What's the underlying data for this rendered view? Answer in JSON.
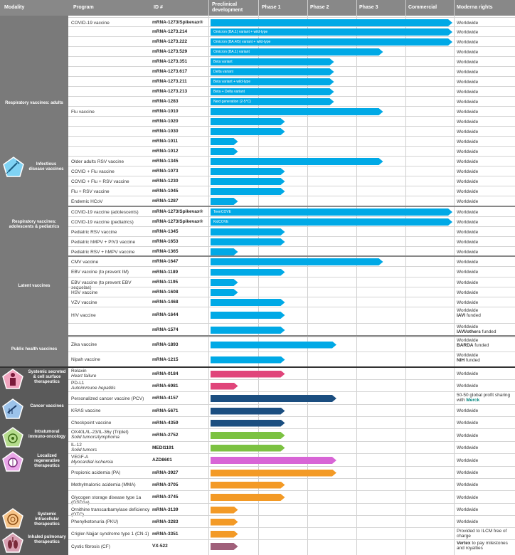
{
  "header": {
    "modality": "Modality",
    "program": "Program",
    "id": "ID #",
    "preclinical": "Preclinical development",
    "phase1": "Phase 1",
    "phase2": "Phase 2",
    "phase3": "Phase 3",
    "commercial": "Commercial",
    "rights": "Moderna rights"
  },
  "colors": {
    "header": "#888888",
    "sidebar_infectious": "#7a7a7a",
    "sidebar_systemic": "#5a5a5a",
    "vaccine": "#00a9e6"
  },
  "modalities": {
    "infectious": "Infectious disease vaccines",
    "systemic_secreted": "Systemic secreted & cell surface therapeutics",
    "cancer": "Cancer vaccines",
    "intratumoral": "Intratumoral immuno-oncology",
    "regenerative": "Localized regenerative therapeutics",
    "intracellular": "Systemic intracellular therapeutics",
    "inhaled": "Inhaled pulmonary therapeutics"
  },
  "groups": {
    "resp_adults": "Respiratory vaccines: adults",
    "resp_peds": "Respiratory vaccines: adolescents & pediatrics",
    "latent": "Latent vaccines",
    "public_health": "Public health vaccines"
  },
  "rows": [
    {
      "program": "COVID-19 vaccine",
      "id": "mRNA-1273/Spikevax®",
      "stage": 5.0,
      "bar_label": "",
      "rights": "Worldwide",
      "color": "#00a9e6"
    },
    {
      "program": "",
      "id": "mRNA-1273.214",
      "stage": 5.0,
      "bar_label": "Omicron (BA.1) variant + wild-type",
      "rights": "Worldwide",
      "color": "#00a9e6"
    },
    {
      "program": "",
      "id": "mRNA-1273.222",
      "stage": 5.0,
      "bar_label": "Omicron (BA.4/5) variant + wild-type",
      "rights": "Worldwide",
      "color": "#00a9e6"
    },
    {
      "program": "",
      "id": "mRNA-1273.529",
      "stage": 3.5,
      "bar_label": "Omicron (BA.1) variant",
      "rights": "Worldwide",
      "color": "#00a9e6"
    },
    {
      "program": "",
      "id": "mRNA-1273.351",
      "stage": 2.5,
      "bar_label": "Beta variant",
      "rights": "Worldwide",
      "color": "#00a9e6"
    },
    {
      "program": "",
      "id": "mRNA-1273.617",
      "stage": 2.5,
      "bar_label": "Delta variant",
      "rights": "Worldwide",
      "color": "#00a9e6"
    },
    {
      "program": "",
      "id": "mRNA-1273.211",
      "stage": 2.5,
      "bar_label": "Beta variant + wild-type",
      "rights": "Worldwide",
      "color": "#00a9e6"
    },
    {
      "program": "",
      "id": "mRNA-1273.213",
      "stage": 2.5,
      "bar_label": "Beta + Delta variant",
      "rights": "Worldwide",
      "color": "#00a9e6"
    },
    {
      "program": "",
      "id": "mRNA-1283",
      "stage": 2.5,
      "bar_label": "Next generation (2-5°C)",
      "rights": "Worldwide",
      "color": "#00a9e6"
    },
    {
      "program": "Flu vaccine",
      "id": "mRNA-1010",
      "stage": 3.5,
      "bar_label": "",
      "rights": "Worldwide",
      "color": "#00a9e6"
    },
    {
      "program": "",
      "id": "mRNA-1020",
      "stage": 1.5,
      "bar_label": "",
      "rights": "Worldwide",
      "color": "#00a9e6"
    },
    {
      "program": "",
      "id": "mRNA-1030",
      "stage": 1.5,
      "bar_label": "",
      "rights": "Worldwide",
      "color": "#00a9e6"
    },
    {
      "program": "",
      "id": "mRNA-1011",
      "stage": 0.55,
      "bar_label": "",
      "rights": "Worldwide",
      "color": "#00a9e6"
    },
    {
      "program": "",
      "id": "mRNA-1012",
      "stage": 0.55,
      "bar_label": "",
      "rights": "Worldwide",
      "color": "#00a9e6"
    },
    {
      "program": "Older adults RSV vaccine",
      "id": "mRNA-1345",
      "stage": 3.5,
      "bar_label": "",
      "rights": "Worldwide",
      "color": "#00a9e6"
    },
    {
      "program": "COVID + Flu vaccine",
      "id": "mRNA-1073",
      "stage": 1.5,
      "bar_label": "",
      "rights": "Worldwide",
      "color": "#00a9e6"
    },
    {
      "program": "COVID + Flu + RSV vaccine",
      "id": "mRNA-1230",
      "stage": 1.5,
      "bar_label": "",
      "rights": "Worldwide",
      "color": "#00a9e6"
    },
    {
      "program": "Flu + RSV vaccine",
      "id": "mRNA-1045",
      "stage": 1.5,
      "bar_label": "",
      "rights": "Worldwide",
      "color": "#00a9e6"
    },
    {
      "program": "Endemic HCoV",
      "id": "mRNA-1287",
      "stage": 0.55,
      "bar_label": "",
      "rights": "Worldwide",
      "color": "#00a9e6"
    },
    {
      "program": "COVID-19 vaccine (adolescents)",
      "id": "mRNA-1273/Spikevax®",
      "stage": 5.0,
      "bar_label": "TeenCOVE",
      "rights": "Worldwide",
      "color": "#00a9e6"
    },
    {
      "program": "COVID-19 vaccine (pediatrics)",
      "id": "mRNA-1273/Spikevax®",
      "stage": 5.0,
      "bar_label": "KidCOVE",
      "rights": "Worldwide",
      "color": "#00a9e6"
    },
    {
      "program": "Pediatric RSV vaccine",
      "id": "mRNA-1345",
      "stage": 1.5,
      "bar_label": "",
      "rights": "Worldwide",
      "color": "#00a9e6"
    },
    {
      "program": "Pediatric hMPV + PIV3 vaccine",
      "id": "mRNA-1653",
      "stage": 1.5,
      "bar_label": "",
      "rights": "Worldwide",
      "color": "#00a9e6"
    },
    {
      "program": "Pediatric RSV + hMPV vaccine",
      "id": "mRNA-1365",
      "stage": 0.55,
      "bar_label": "",
      "rights": "Worldwide",
      "color": "#00a9e6"
    },
    {
      "program": "CMV vaccine",
      "id": "mRNA-1647",
      "stage": 3.5,
      "bar_label": "",
      "rights": "Worldwide",
      "color": "#00a9e6"
    },
    {
      "program": "EBV vaccine (to prevent IM)",
      "id": "mRNA-1189",
      "stage": 1.5,
      "bar_label": "",
      "rights": "Worldwide",
      "color": "#00a9e6"
    },
    {
      "program": "EBV vaccine (to prevent EBV sequelae)",
      "id": "mRNA-1195",
      "stage": 0.55,
      "bar_label": "",
      "rights": "Worldwide",
      "color": "#00a9e6"
    },
    {
      "program": "HSV vaccine",
      "id": "mRNA-1608",
      "stage": 0.55,
      "bar_label": "",
      "rights": "Worldwide",
      "color": "#00a9e6"
    },
    {
      "program": "VZV vaccine",
      "id": "mRNA-1468",
      "stage": 1.5,
      "bar_label": "",
      "rights": "Worldwide",
      "color": "#00a9e6"
    },
    {
      "program": "HIV vaccine",
      "id": "mRNA-1644",
      "stage": 1.5,
      "bar_label": "",
      "rights": "Worldwide",
      "rights_bold": "IAVI",
      "rights_tail": "funded",
      "color": "#00a9e6"
    },
    {
      "program": "",
      "id": "mRNA-1574",
      "stage": 1.5,
      "bar_label": "",
      "rights": "Worldwide",
      "rights_bold": "IAVI/others",
      "rights_tail": "funded",
      "color": "#00a9e6"
    },
    {
      "program": "Zika vaccine",
      "id": "mRNA-1893",
      "stage": 2.55,
      "bar_label": "",
      "rights": "Worldwide",
      "rights_bold": "BARDA",
      "rights_tail": "funded",
      "color": "#00a9e6"
    },
    {
      "program": "Nipah vaccine",
      "id": "mRNA-1215",
      "stage": 1.5,
      "bar_label": "",
      "rights": "Worldwide",
      "rights_bold": "NIH",
      "rights_tail": "funded",
      "color": "#00a9e6"
    },
    {
      "program": "Relaxin",
      "program2": "Heart failure",
      "id": "mRNA-0184",
      "stage": 1.5,
      "bar_label": "",
      "rights": "Worldwide",
      "color": "#e0457a"
    },
    {
      "program": "PD-L1",
      "program2": "Autoimmune hepatitis",
      "id": "mRNA-6981",
      "stage": 0.55,
      "bar_label": "",
      "rights": "Worldwide",
      "color": "#e0457a"
    },
    {
      "program": "Personalized cancer vaccine (PCV)",
      "id": "mRNA-4157",
      "stage": 2.55,
      "bar_label": "",
      "rights": "50-50 global profit sharing with",
      "rights_bold2": "Merck",
      "color": "#1b4e80"
    },
    {
      "program": "KRAS vaccine",
      "id": "mRNA-5671",
      "stage": 1.5,
      "bar_label": "",
      "rights": "Worldwide",
      "color": "#1b4e80"
    },
    {
      "program": "Checkpoint vaccine",
      "id": "mRNA-4359",
      "stage": 1.5,
      "bar_label": "",
      "rights": "Worldwide",
      "color": "#1b4e80"
    },
    {
      "program": "OX40L/IL-23/IL-36γ (Triplet)",
      "program2": "Solid tumors/lymphoma",
      "id": "mRNA-2752",
      "stage": 1.5,
      "bar_label": "",
      "rights": "Worldwide",
      "color": "#7cc242"
    },
    {
      "program": "IL-12",
      "program2": "Solid tumors",
      "id": "MEDI1191",
      "stage": 1.5,
      "bar_label": "",
      "rights": "Worldwide",
      "color": "#7cc242"
    },
    {
      "program": "VEGF-A",
      "program2": "Myocardial ischemia",
      "id": "AZD8601",
      "stage": 2.55,
      "bar_label": "",
      "rights": "Worldwide",
      "color": "#d865d6"
    },
    {
      "program": "Propionic acidemia (PA)",
      "id": "mRNA-3927",
      "stage": 2.55,
      "bar_label": "",
      "rights": "Worldwide",
      "color": "#f39a26"
    },
    {
      "program": "Methylmalonic acidemia (MMA)",
      "id": "mRNA-3705",
      "stage": 1.5,
      "bar_label": "",
      "rights": "Worldwide",
      "color": "#f39a26"
    },
    {
      "program": "Glycogen storage disease type 1a (GSD1a)",
      "id": "mRNA-3745",
      "stage": 1.5,
      "bar_label": "",
      "rights": "Worldwide",
      "color": "#f39a26"
    },
    {
      "program": "Ornithine transcarbamylase deficiency (OTC)",
      "id": "mRNA-3139",
      "stage": 0.55,
      "bar_label": "",
      "rights": "Worldwide",
      "color": "#f39a26"
    },
    {
      "program": "Phenylketonuria (PKU)",
      "id": "mRNA-3283",
      "stage": 0.55,
      "bar_label": "",
      "rights": "Worldwide",
      "color": "#f39a26"
    },
    {
      "program": "Crigler-Najjar syndrome type 1 (CN-1)",
      "id": "mRNA-3351",
      "stage": 0.55,
      "bar_label": "",
      "rights": "Provided to ILCM free of charge",
      "color": "#f39a26"
    },
    {
      "program": "Cystic fibrosis (CF)",
      "id": "VX-522",
      "stage": 0.55,
      "bar_label": "",
      "rights": "",
      "rights_lead_bold": "Vertex",
      "rights_after": "to pay milestones and royalties",
      "color": "#a0607a"
    }
  ]
}
